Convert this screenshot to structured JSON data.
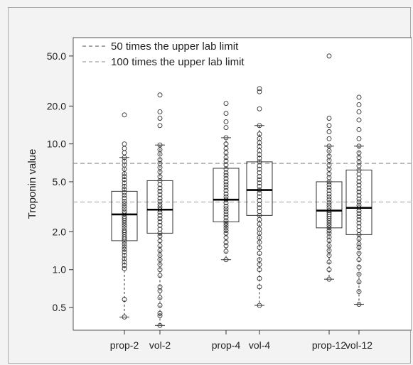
{
  "chart_data": {
    "type": "box",
    "ylabel": "Troponin value",
    "y_scale": "log",
    "ylim": [
      0.33,
      70
    ],
    "yticks": [
      {
        "value": 0.5,
        "label": "0.5"
      },
      {
        "value": 1.0,
        "label": "1.0"
      },
      {
        "value": 2.0,
        "label": "2.0"
      },
      {
        "value": 5.0,
        "label": "5.0"
      },
      {
        "value": 10.0,
        "label": "10.0"
      },
      {
        "value": 20.0,
        "label": "20.0"
      },
      {
        "value": 50.0,
        "label": "50.0"
      }
    ],
    "reference_lines": [
      {
        "name": "50 times the upper lab limit",
        "value": 7.0,
        "color": "#8a8a8a"
      },
      {
        "name": "100 times the upper lab limit",
        "value": 3.45,
        "color": "#b0b0b0"
      }
    ],
    "groups": [
      {
        "label": "prop-2",
        "q1": 1.7,
        "median": 2.75,
        "q3": 4.2,
        "whisker_low": 0.42,
        "whisker_high": 7.8,
        "points": [
          0.42,
          0.58,
          1.02,
          1.08,
          1.15,
          1.22,
          1.3,
          1.38,
          1.45,
          1.52,
          1.6,
          1.68,
          1.75,
          1.82,
          1.9,
          1.98,
          2.05,
          2.15,
          2.25,
          2.35,
          2.45,
          2.55,
          2.65,
          2.78,
          2.9,
          3.05,
          3.2,
          3.35,
          3.5,
          3.7,
          3.9,
          4.1,
          4.35,
          4.6,
          4.9,
          5.2,
          5.5,
          5.8,
          6.3,
          6.8,
          7.3,
          7.8,
          8.5,
          9.2,
          10.0,
          17.0
        ]
      },
      {
        "label": "vol-2",
        "q1": 1.95,
        "median": 3.0,
        "q3": 5.1,
        "whisker_low": 0.36,
        "whisker_high": 9.8,
        "points": [
          0.36,
          0.43,
          0.45,
          0.52,
          0.6,
          0.68,
          0.73,
          0.9,
          1.0,
          1.1,
          1.2,
          1.3,
          1.42,
          1.55,
          1.7,
          1.85,
          1.95,
          2.1,
          2.25,
          2.4,
          2.55,
          2.7,
          2.85,
          3.0,
          3.15,
          3.3,
          3.5,
          3.7,
          3.95,
          4.2,
          4.45,
          4.75,
          5.1,
          5.5,
          6.0,
          6.5,
          7.0,
          7.5,
          8.3,
          9.0,
          9.8,
          14.0,
          16.0,
          18.0,
          24.5
        ]
      },
      {
        "label": "prop-4",
        "q1": 2.4,
        "median": 3.6,
        "q3": 6.4,
        "whisker_low": 1.2,
        "whisker_high": 11.2,
        "points": [
          1.2,
          1.4,
          1.55,
          1.65,
          1.8,
          1.95,
          2.05,
          2.15,
          2.25,
          2.35,
          2.45,
          2.6,
          2.75,
          2.9,
          3.05,
          3.2,
          3.4,
          3.6,
          3.8,
          4.0,
          4.25,
          4.5,
          4.75,
          5.0,
          5.3,
          5.6,
          5.9,
          6.3,
          6.8,
          7.3,
          7.8,
          8.5,
          9.2,
          10.0,
          11.2,
          13.5,
          15.0,
          17.5,
          21.0
        ]
      },
      {
        "label": "vol-4",
        "q1": 2.7,
        "median": 4.3,
        "q3": 7.2,
        "whisker_low": 0.52,
        "whisker_high": 14.0,
        "points": [
          0.52,
          0.73,
          0.85,
          1.0,
          1.1,
          1.2,
          1.35,
          1.5,
          1.65,
          1.8,
          1.95,
          2.1,
          2.3,
          2.5,
          2.7,
          2.9,
          3.1,
          3.3,
          3.55,
          3.8,
          4.05,
          4.3,
          4.6,
          4.9,
          5.2,
          5.5,
          5.9,
          6.3,
          6.7,
          7.2,
          7.7,
          8.2,
          8.8,
          9.5,
          10.2,
          11.0,
          12.0,
          14.0,
          19.0,
          26.0,
          27.5
        ]
      },
      {
        "label": "prop-12",
        "q1": 2.15,
        "median": 2.95,
        "q3": 5.0,
        "whisker_low": 0.84,
        "whisker_high": 9.6,
        "points": [
          0.84,
          1.0,
          1.15,
          1.3,
          1.42,
          1.55,
          1.7,
          1.82,
          1.95,
          2.05,
          2.15,
          2.25,
          2.35,
          2.45,
          2.55,
          2.65,
          2.75,
          2.85,
          2.95,
          3.1,
          3.25,
          3.4,
          3.6,
          3.8,
          4.0,
          4.25,
          4.5,
          4.75,
          5.0,
          5.4,
          5.8,
          6.3,
          6.8,
          7.4,
          8.0,
          8.8,
          9.6,
          11.0,
          12.5,
          14.0,
          16.0,
          50.0
        ]
      },
      {
        "label": "vol-12",
        "q1": 1.9,
        "median": 3.1,
        "q3": 6.2,
        "whisker_low": 0.53,
        "whisker_high": 9.6,
        "points": [
          0.53,
          0.67,
          0.8,
          0.92,
          1.05,
          1.2,
          1.35,
          1.5,
          1.6,
          1.75,
          1.9,
          2.05,
          2.2,
          2.35,
          2.5,
          2.65,
          2.8,
          2.95,
          3.1,
          3.25,
          3.45,
          3.65,
          3.9,
          4.15,
          4.4,
          4.7,
          5.0,
          5.35,
          5.75,
          6.2,
          6.7,
          7.2,
          7.8,
          8.5,
          9.6,
          11.0,
          13.0,
          15.5,
          18.0,
          20.5,
          23.5
        ]
      }
    ]
  }
}
